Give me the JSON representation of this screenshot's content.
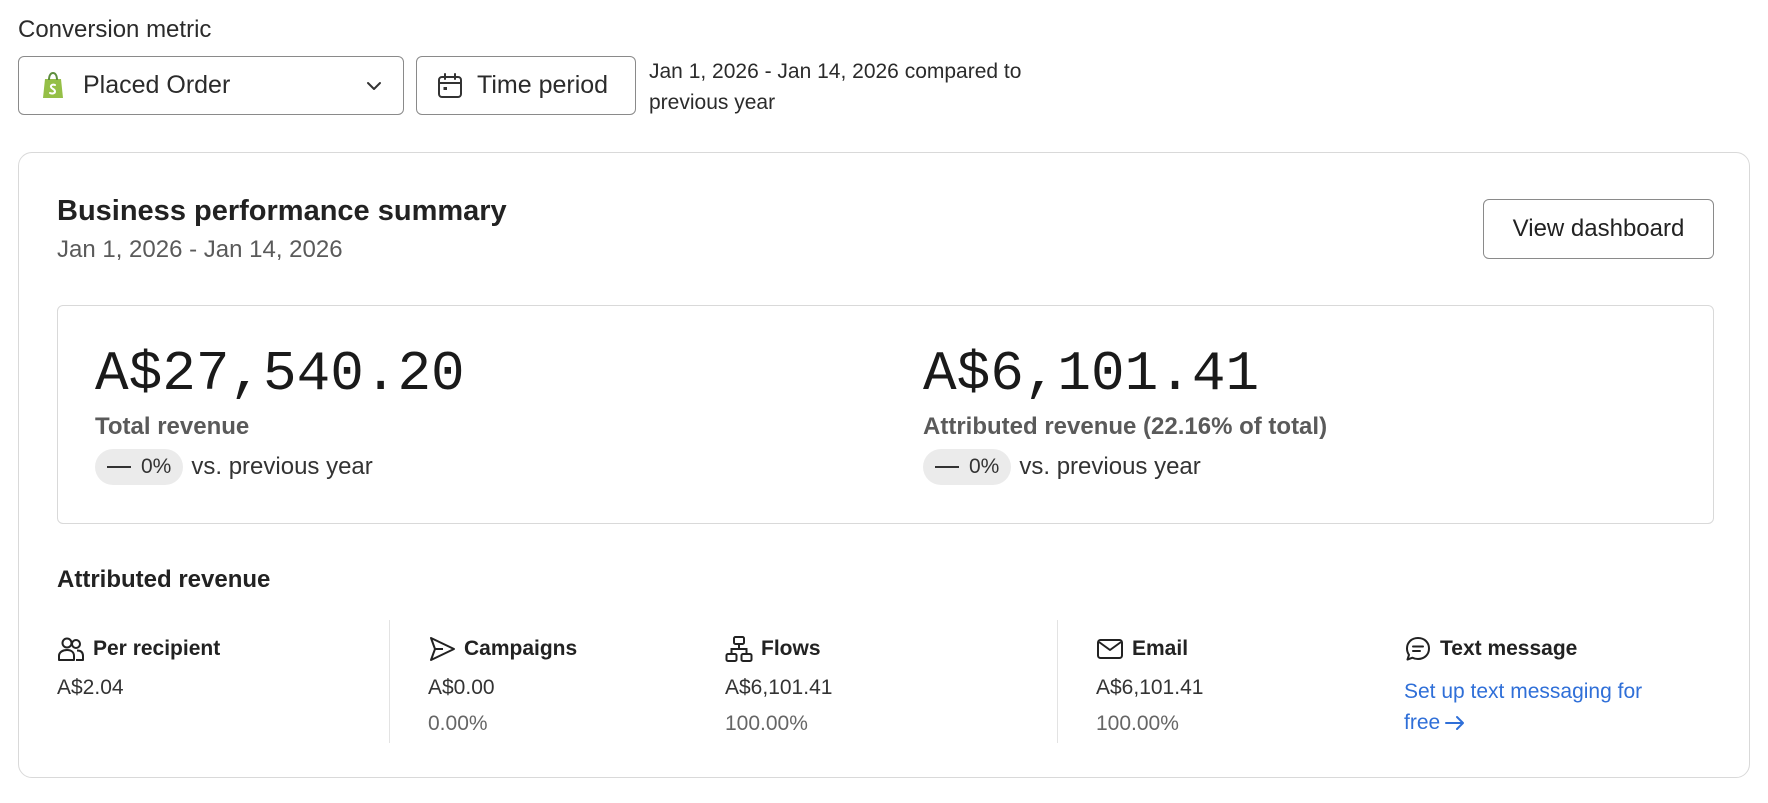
{
  "metric": {
    "label": "Conversion metric",
    "selected": "Placed Order",
    "icon": "shopify-bag-icon"
  },
  "time_period": {
    "label": "Time period",
    "icon": "calendar-icon",
    "compare_text": "Jan 1, 2026 - Jan 14, 2026 compared to previous year"
  },
  "summary": {
    "title": "Business performance summary",
    "dates": "Jan 1, 2026 - Jan 14, 2026",
    "view_button": "View dashboard",
    "total": {
      "value": "A$27,540.20",
      "label": "Total revenue",
      "change": "0%",
      "vs": "vs. previous year"
    },
    "attributed": {
      "value": "A$6,101.41",
      "label": "Attributed revenue (22.16% of total)",
      "change": "0%",
      "vs": "vs. previous year"
    }
  },
  "attributed_revenue": {
    "title": "Attributed revenue",
    "per_recipient": {
      "label": "Per recipient",
      "value": "A$2.04",
      "icon": "users-icon"
    },
    "campaigns": {
      "label": "Campaigns",
      "value": "A$0.00",
      "pct": "0.00%",
      "icon": "send-icon"
    },
    "flows": {
      "label": "Flows",
      "value": "A$6,101.41",
      "pct": "100.00%",
      "icon": "flow-icon"
    },
    "email": {
      "label": "Email",
      "value": "A$6,101.41",
      "pct": "100.00%",
      "icon": "mail-icon"
    },
    "text_message": {
      "label": "Text message",
      "link": "Set up text messaging for free",
      "icon": "chat-icon"
    }
  },
  "colors": {
    "link": "#2f6fd8",
    "border": "#8a8a8a",
    "pill_bg": "#ebebeb",
    "shopify_green": "#95bf47"
  }
}
